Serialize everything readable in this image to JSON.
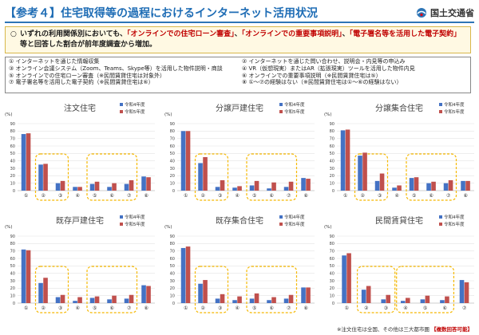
{
  "header": {
    "title": "【参考４】住宅取得等の過程におけるインターネット活用状況",
    "ministry": "国土交通省"
  },
  "summary": {
    "line1": "いずれの利用関係別においても、",
    "hl1": "「オンラインでの住宅ローン審査」",
    "sep1": "、",
    "hl2": "「オンラインでの重要事項説明」",
    "sep2": "、",
    "hl3": "「電子署名等を活用した電子契約」",
    "line2": "等と回答した割合が前年度調査から増加。"
  },
  "legend": {
    "items": [
      "① インターネットを通じた情報収集",
      "② インターネットを通じた問い合わせ、説明会・内見等の申込み",
      "③ オンライン会議システム（Zoom、Teams、Skype等）を活用した物件説明・商談",
      "④ VR（仮想現実）またはAR（拡張現実）ツールを活用した物件内見",
      "⑤ オンラインでの住宅ローン審査（※民間賃貸住宅は対象外）",
      "⑥ オンラインでの重要事項説明（※民間賃貸住宅は⑤）",
      "⑦ 電子署名等を活用した電子契約（※民間賃貸住宅は⑥）",
      "⑧ ①〜⑦の経験はない（※民間賃貸住宅は①〜⑥の経験はない）"
    ]
  },
  "colors": {
    "r4": "#4472c4",
    "r5": "#c0504d",
    "highlight": "#f5b800"
  },
  "footnote": {
    "text": "※注文住宅は全国、その他は三大都市圏",
    "tag": "【複数回答可能】"
  },
  "chart_data": [
    {
      "type": "bar",
      "title": "注文住宅",
      "ylabel": "(%)",
      "ylim": [
        0,
        90
      ],
      "yticks": [
        0,
        10,
        20,
        30,
        40,
        50,
        60,
        70,
        80,
        90
      ],
      "categories": [
        "①",
        "②",
        "③",
        "④",
        "⑤",
        "⑥",
        "⑦",
        "⑧"
      ],
      "series": [
        {
          "name": "令和4年度",
          "values": [
            76,
            35,
            10,
            5,
            9,
            5,
            9,
            19
          ]
        },
        {
          "name": "令和5年度",
          "values": [
            77,
            36,
            13,
            5,
            12,
            10,
            14,
            18
          ]
        }
      ],
      "highlight_groups": [
        [
          1,
          2
        ],
        [
          4,
          6
        ]
      ]
    },
    {
      "type": "bar",
      "title": "分譲戸建住宅",
      "ylabel": "(%)",
      "ylim": [
        0,
        90
      ],
      "yticks": [
        0,
        10,
        20,
        30,
        40,
        50,
        60,
        70,
        80,
        90
      ],
      "categories": [
        "①",
        "②",
        "③",
        "④",
        "⑤",
        "⑥",
        "⑦",
        "⑧"
      ],
      "series": [
        {
          "name": "令和4年度",
          "values": [
            80,
            37,
            5,
            4,
            7,
            3,
            5,
            17
          ]
        },
        {
          "name": "令和5年度",
          "values": [
            80,
            45,
            14,
            6,
            13,
            11,
            12,
            16
          ]
        }
      ],
      "highlight_groups": [
        [
          1,
          2
        ],
        [
          4,
          6
        ]
      ]
    },
    {
      "type": "bar",
      "title": "分譲集合住宅",
      "ylabel": "(%)",
      "ylim": [
        0,
        90
      ],
      "yticks": [
        0,
        10,
        20,
        30,
        40,
        50,
        60,
        70,
        80,
        90
      ],
      "categories": [
        "①",
        "②",
        "③",
        "④",
        "⑤",
        "⑥",
        "⑦",
        "⑧"
      ],
      "series": [
        {
          "name": "令和4年度",
          "values": [
            81,
            47,
            13,
            4,
            17,
            10,
            10,
            13
          ]
        },
        {
          "name": "令和5年度",
          "values": [
            82,
            51,
            23,
            7,
            18,
            12,
            14,
            13
          ]
        }
      ],
      "highlight_groups": [
        [
          1,
          2
        ],
        [
          4,
          6
        ]
      ]
    },
    {
      "type": "bar",
      "title": "既存戸建住宅",
      "ylabel": "(%)",
      "ylim": [
        0,
        90
      ],
      "yticks": [
        0,
        10,
        20,
        30,
        40,
        50,
        60,
        70,
        80,
        90
      ],
      "categories": [
        "①",
        "②",
        "③",
        "④",
        "⑤",
        "⑥",
        "⑦",
        "⑧"
      ],
      "series": [
        {
          "name": "令和4年度",
          "values": [
            72,
            27,
            8,
            3,
            7,
            5,
            6,
            24
          ]
        },
        {
          "name": "令和5年度",
          "values": [
            71,
            34,
            11,
            8,
            9,
            10,
            11,
            23
          ]
        }
      ],
      "highlight_groups": [
        [
          1,
          2
        ],
        [
          4,
          6
        ]
      ]
    },
    {
      "type": "bar",
      "title": "既存集合住宅",
      "ylabel": "(%)",
      "ylim": [
        0,
        90
      ],
      "yticks": [
        0,
        10,
        20,
        30,
        40,
        50,
        60,
        70,
        80,
        90
      ],
      "categories": [
        "①",
        "②",
        "③",
        "④",
        "⑤",
        "⑥",
        "⑦",
        "⑧"
      ],
      "series": [
        {
          "name": "令和4年度",
          "values": [
            74,
            26,
            6,
            4,
            6,
            4,
            6,
            21
          ]
        },
        {
          "name": "令和5年度",
          "values": [
            76,
            31,
            12,
            9,
            13,
            8,
            11,
            21
          ]
        }
      ],
      "highlight_groups": [
        [
          1,
          2
        ],
        [
          4,
          6
        ]
      ]
    },
    {
      "type": "bar",
      "title": "民間賃貸住宅",
      "ylabel": "(%)",
      "ylim": [
        0,
        90
      ],
      "yticks": [
        0,
        10,
        20,
        30,
        40,
        50,
        60,
        70,
        80,
        90
      ],
      "categories": [
        "①",
        "②",
        "③",
        "④",
        "⑤",
        "⑥",
        "⑦"
      ],
      "series": [
        {
          "name": "令和4年度",
          "values": [
            64,
            18,
            5,
            3,
            5,
            4,
            31
          ]
        },
        {
          "name": "令和5年度",
          "values": [
            67,
            23,
            11,
            7,
            10,
            9,
            28
          ]
        }
      ],
      "highlight_groups": [
        [
          1,
          2
        ],
        [
          3,
          5
        ]
      ]
    }
  ]
}
